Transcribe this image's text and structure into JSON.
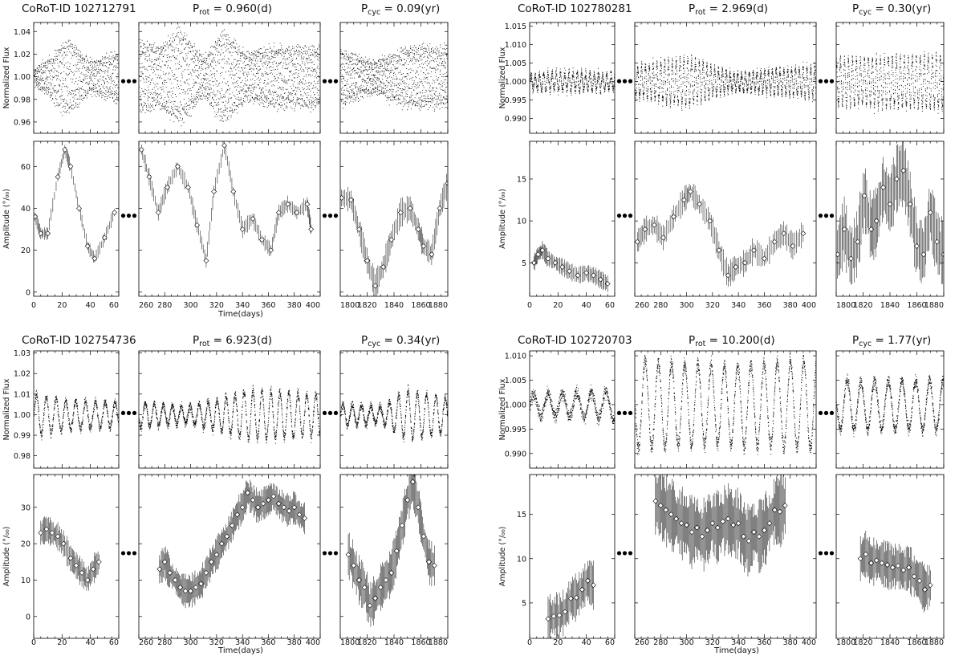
{
  "chart_data": [
    {
      "type": "scatter",
      "star_label": "CoRoT-ID",
      "star_id": "102712791",
      "prot_sub": "rot",
      "prot_value": "0.960(d)",
      "pcyc_sub": "cyc",
      "pcyc_value": "0.09(yr)",
      "flux_ylabel": "Normalized Flux",
      "amp_ylabel": "Amplitude (°/₀₀)",
      "xlabel": "Time(days)",
      "flux_ylim": [
        0.95,
        1.048
      ],
      "flux_yticks": [
        0.96,
        0.98,
        1.0,
        1.02,
        1.04
      ],
      "flux_yticklabels": [
        "0.96",
        "0.98",
        "1.00",
        "1.02",
        "1.04"
      ],
      "amp_ylim": [
        -2,
        72
      ],
      "amp_yticks": [
        0,
        20,
        40,
        60
      ],
      "amp_yticklabels": [
        "0",
        "20",
        "40",
        "60"
      ],
      "segments": [
        {
          "xlim": [
            0,
            60
          ],
          "xticks": [
            0,
            20,
            40,
            60
          ],
          "xticklabels": [
            "0",
            "20",
            "40",
            "60"
          ]
        },
        {
          "xlim": [
            260,
            400
          ],
          "xticks": [
            260,
            280,
            300,
            320,
            340,
            360,
            380,
            400
          ],
          "xticklabels": [
            "260",
            "280",
            "300",
            "320",
            "340",
            "360",
            "380",
            "400"
          ]
        },
        {
          "xlim": [
            1800,
            1880
          ],
          "xticks": [
            1800,
            1820,
            1840,
            1860,
            1880
          ],
          "xticklabels": [
            "1800",
            "1820",
            "1840",
            "1860",
            "1880"
          ]
        }
      ],
      "flux_model": {
        "base": 1.0,
        "prot": 0.96,
        "spot": [
          [
            0,
            0.005
          ],
          [
            10,
            0.015
          ],
          [
            24,
            0.032
          ],
          [
            40,
            0.012
          ],
          [
            58,
            0.02
          ],
          [
            262,
            0.03
          ],
          [
            275,
            0.025
          ],
          [
            292,
            0.04
          ],
          [
            310,
            0.015
          ],
          [
            325,
            0.04
          ],
          [
            342,
            0.02
          ],
          [
            365,
            0.025
          ],
          [
            393,
            0.025
          ],
          [
            1802,
            0.022
          ],
          [
            1825,
            0.012
          ],
          [
            1850,
            0.025
          ],
          [
            1880,
            0.025
          ]
        ],
        "noise": 0.004,
        "n": [
          900,
          2200,
          1300
        ]
      },
      "amplitude": [
        {
          "x": [
            1,
            5,
            10,
            17,
            22,
            26,
            32,
            38,
            43,
            50,
            57
          ],
          "y": [
            36,
            28,
            28,
            55,
            68,
            60,
            40,
            22,
            16,
            26,
            38
          ],
          "err": 2.5
        },
        {
          "x": [
            262,
            268,
            275,
            282,
            290,
            298,
            305,
            312,
            318,
            326,
            333,
            340,
            348,
            355,
            362,
            368,
            375,
            382,
            390,
            393
          ],
          "y": [
            68,
            55,
            38,
            50,
            60,
            50,
            32,
            15,
            48,
            70,
            48,
            30,
            35,
            25,
            20,
            38,
            42,
            38,
            42,
            30
          ],
          "err": 3
        },
        {
          "x": [
            1801,
            1808,
            1814,
            1820,
            1826,
            1832,
            1838,
            1845,
            1852,
            1858,
            1862,
            1868,
            1874,
            1880
          ],
          "y": [
            45,
            44,
            30,
            15,
            3,
            12,
            25,
            38,
            40,
            30,
            22,
            18,
            40,
            52
          ],
          "err": 5
        }
      ]
    },
    {
      "type": "scatter",
      "star_label": "CoRoT-ID",
      "star_id": "102780281",
      "prot_sub": "rot",
      "prot_value": "2.969(d)",
      "pcyc_sub": "cyc",
      "pcyc_value": "0.30(yr)",
      "flux_ylabel": "Normalized Flux",
      "amp_ylabel": "Amplitude (°/₀₀)",
      "xlabel": "",
      "flux_ylim": [
        0.986,
        1.016
      ],
      "flux_yticks": [
        0.99,
        0.995,
        1.0,
        1.005,
        1.01,
        1.015
      ],
      "flux_yticklabels": [
        "0.990",
        "0.995",
        "1.000",
        "1.005",
        "1.010",
        "1.015"
      ],
      "amp_ylim": [
        1,
        19.5
      ],
      "amp_yticks": [
        5,
        10,
        15
      ],
      "amp_yticklabels": [
        "5",
        "10",
        "15"
      ],
      "segments": [
        {
          "xlim": [
            0,
            60
          ],
          "xticks": [
            0,
            20,
            40,
            60
          ],
          "xticklabels": [
            "0",
            "20",
            "40",
            "60"
          ]
        },
        {
          "xlim": [
            260,
            400
          ],
          "xticks": [
            260,
            280,
            300,
            320,
            340,
            360,
            380,
            400
          ],
          "xticklabels": [
            "260",
            "280",
            "300",
            "320",
            "340",
            "360",
            "380",
            "400"
          ]
        },
        {
          "xlim": [
            1800,
            1880
          ],
          "xticks": [
            1800,
            1820,
            1840,
            1860,
            1880
          ],
          "xticklabels": [
            "1800",
            "1820",
            "1840",
            "1860",
            "1880"
          ]
        }
      ],
      "flux_model": {
        "base": 1.0,
        "prot": 2.969,
        "spot": [
          [
            0,
            0.002
          ],
          [
            20,
            0.0025
          ],
          [
            58,
            0.002
          ],
          [
            262,
            0.004
          ],
          [
            300,
            0.0065
          ],
          [
            335,
            0.002
          ],
          [
            393,
            0.004
          ],
          [
            1802,
            0.006
          ],
          [
            1880,
            0.007
          ]
        ],
        "noise": 0.0012,
        "n": [
          900,
          2200,
          1300
        ]
      },
      "amplitude": [
        {
          "x": [
            3,
            6,
            9,
            13,
            18,
            23,
            28,
            34,
            40,
            45,
            50,
            55
          ],
          "y": [
            5.0,
            6.0,
            6.5,
            5.5,
            5.0,
            4.5,
            4.0,
            3.5,
            3.8,
            3.5,
            3.0,
            2.5
          ],
          "err": 0.8
        },
        {
          "x": [
            262,
            268,
            275,
            282,
            290,
            298,
            303,
            310,
            318,
            325,
            332,
            338,
            345,
            352,
            360,
            368,
            375,
            382,
            390
          ],
          "y": [
            7.5,
            9.0,
            9.5,
            8.0,
            10.5,
            12.5,
            13.5,
            12.0,
            10.0,
            6.5,
            3.5,
            4.5,
            5.0,
            6.5,
            5.5,
            7.5,
            8.5,
            7.0,
            8.5
          ],
          "err": 1.2
        },
        {
          "x": [
            1801,
            1806,
            1811,
            1816,
            1821,
            1826,
            1830,
            1835,
            1840,
            1845,
            1850,
            1855,
            1860,
            1865,
            1870,
            1875,
            1880
          ],
          "y": [
            6.0,
            9.0,
            5.5,
            7.5,
            13.0,
            9.0,
            10.0,
            14.0,
            12.0,
            15.0,
            16.0,
            12.0,
            7.0,
            6.0,
            11.0,
            7.5,
            6.0
          ],
          "err": 3.0
        }
      ]
    },
    {
      "type": "scatter",
      "star_label": "CoRoT-ID",
      "star_id": "102754736",
      "prot_sub": "rot",
      "prot_value": "6.923(d)",
      "pcyc_sub": "cyc",
      "pcyc_value": "0.34(yr)",
      "flux_ylabel": "Normalized Flux",
      "amp_ylabel": "Amplitude (°/₀₀)",
      "xlabel": "Time(days)",
      "flux_ylim": [
        0.974,
        1.031
      ],
      "flux_yticks": [
        0.98,
        0.99,
        1.0,
        1.01,
        1.02,
        1.03
      ],
      "flux_yticklabels": [
        "0.98",
        "0.99",
        "1.00",
        "1.01",
        "1.02",
        "1.03"
      ],
      "amp_ylim": [
        -6,
        39
      ],
      "amp_yticks": [
        0,
        10,
        20,
        30
      ],
      "amp_yticklabels": [
        "0",
        "10",
        "20",
        "30"
      ],
      "segments": [
        {
          "xlim": [
            0,
            60
          ],
          "xticks": [
            0,
            20,
            40,
            60
          ],
          "xticklabels": [
            "0",
            "20",
            "40",
            "60"
          ]
        },
        {
          "xlim": [
            260,
            400
          ],
          "xticks": [
            260,
            280,
            300,
            320,
            340,
            360,
            380,
            400
          ],
          "xticklabels": [
            "260",
            "280",
            "300",
            "320",
            "340",
            "360",
            "380",
            "400"
          ]
        },
        {
          "xlim": [
            1800,
            1880
          ],
          "xticks": [
            1800,
            1820,
            1840,
            1860,
            1880
          ],
          "xticklabels": [
            "1800",
            "1820",
            "1840",
            "1860",
            "1880"
          ]
        }
      ],
      "flux_model": {
        "base": 1.0,
        "prot": 6.923,
        "spot": [
          [
            0,
            0.01
          ],
          [
            25,
            0.007
          ],
          [
            58,
            0.006
          ],
          [
            262,
            0.006
          ],
          [
            300,
            0.004
          ],
          [
            345,
            0.012
          ],
          [
            393,
            0.01
          ],
          [
            1802,
            0.005
          ],
          [
            1830,
            0.004
          ],
          [
            1850,
            0.012
          ],
          [
            1880,
            0.008
          ]
        ],
        "noise": 0.002,
        "n": [
          900,
          2200,
          1300
        ]
      },
      "amplitude": [
        {
          "x": [
            5,
            9,
            13,
            17,
            21,
            26,
            30,
            34,
            38,
            42,
            46
          ],
          "y": [
            23,
            24,
            23,
            22,
            20,
            16,
            14,
            12,
            10,
            13,
            15
          ],
          "err": 3
        },
        {
          "x": [
            276,
            280,
            284,
            288,
            292,
            296,
            300,
            304,
            308,
            312,
            316,
            320,
            324,
            328,
            332,
            336,
            340,
            344,
            348,
            352,
            356,
            360,
            364,
            368,
            372,
            376,
            380,
            384,
            388
          ],
          "y": [
            13,
            15,
            12,
            10,
            8,
            7,
            7,
            8,
            9,
            12,
            15,
            17,
            20,
            22,
            25,
            28,
            30,
            34,
            32,
            30,
            31,
            32,
            33,
            31,
            30,
            29,
            30,
            28,
            27
          ],
          "err": 3.5
        },
        {
          "x": [
            1806,
            1810,
            1814,
            1818,
            1822,
            1826,
            1830,
            1834,
            1838,
            1842,
            1846,
            1850,
            1854,
            1858,
            1862,
            1866,
            1870
          ],
          "y": [
            17,
            14,
            10,
            8,
            3,
            5,
            8,
            10,
            12,
            18,
            25,
            32,
            37,
            30,
            22,
            15,
            14
          ],
          "err": 5
        }
      ]
    },
    {
      "type": "scatter",
      "star_label": "CoRoT-ID",
      "star_id": "102720703",
      "prot_sub": "rot",
      "prot_value": "10.200(d)",
      "pcyc_sub": "cyc",
      "pcyc_value": "1.77(yr)",
      "flux_ylabel": "Normalized Flux",
      "amp_ylabel": "Amplitude (°/₀₀)",
      "xlabel": "Time(days)",
      "flux_ylim": [
        0.987,
        1.011
      ],
      "flux_yticks": [
        0.99,
        0.995,
        1.0,
        1.005,
        1.01
      ],
      "flux_yticklabels": [
        "0.990",
        "0.995",
        "1.000",
        "1.005",
        "1.010"
      ],
      "amp_ylim": [
        1,
        19.5
      ],
      "amp_yticks": [
        5,
        10,
        15
      ],
      "amp_yticklabels": [
        "5",
        "10",
        "15"
      ],
      "segments": [
        {
          "xlim": [
            0,
            60
          ],
          "xticks": [
            0,
            20,
            40,
            60
          ],
          "xticklabels": [
            "0",
            "20",
            "40",
            "60"
          ]
        },
        {
          "xlim": [
            260,
            400
          ],
          "xticks": [
            260,
            280,
            300,
            320,
            340,
            360,
            380,
            400
          ],
          "xticklabels": [
            "260",
            "280",
            "300",
            "320",
            "340",
            "360",
            "380",
            "400"
          ]
        },
        {
          "xlim": [
            1800,
            1880
          ],
          "xticks": [
            1800,
            1820,
            1840,
            1860,
            1880
          ],
          "xticklabels": [
            "1800",
            "1820",
            "1840",
            "1860",
            "1880"
          ]
        }
      ],
      "flux_model": {
        "base": 1.0,
        "prot": 10.2,
        "spot": [
          [
            0,
            0.002
          ],
          [
            30,
            0.0025
          ],
          [
            58,
            0.003
          ],
          [
            262,
            0.009
          ],
          [
            330,
            0.008
          ],
          [
            393,
            0.009
          ],
          [
            1802,
            0.005
          ],
          [
            1880,
            0.005
          ]
        ],
        "noise": 0.0012,
        "n": [
          900,
          2200,
          1300
        ]
      },
      "amplitude": [
        {
          "x": [
            13,
            17,
            21,
            25,
            29,
            33,
            37,
            41,
            45
          ],
          "y": [
            3.2,
            3.5,
            3.6,
            4.0,
            5.5,
            5.6,
            6.5,
            7.5,
            7.0
          ],
          "err": 2
        },
        {
          "x": [
            276,
            280,
            284,
            288,
            292,
            296,
            300,
            304,
            308,
            312,
            316,
            320,
            324,
            328,
            332,
            336,
            340,
            344,
            348,
            352,
            356,
            360,
            364,
            368,
            372,
            376
          ],
          "y": [
            16.5,
            16.0,
            15.5,
            15.0,
            14.5,
            14.0,
            13.8,
            13.0,
            13.5,
            12.5,
            13.2,
            14.0,
            13.5,
            14.2,
            14.5,
            13.8,
            14.0,
            12.5,
            12.0,
            13.0,
            12.5,
            13.2,
            14.0,
            15.5,
            15.3,
            16.0
          ],
          "err": 3
        },
        {
          "x": [
            1818,
            1822,
            1826,
            1830,
            1834,
            1838,
            1842,
            1846,
            1850,
            1854,
            1858,
            1862,
            1866,
            1870
          ],
          "y": [
            10.0,
            10.5,
            9.5,
            9.8,
            9.5,
            9.3,
            9.0,
            9.2,
            8.7,
            9.0,
            8.0,
            7.5,
            6.5,
            7.0
          ],
          "err": 2
        }
      ]
    }
  ]
}
